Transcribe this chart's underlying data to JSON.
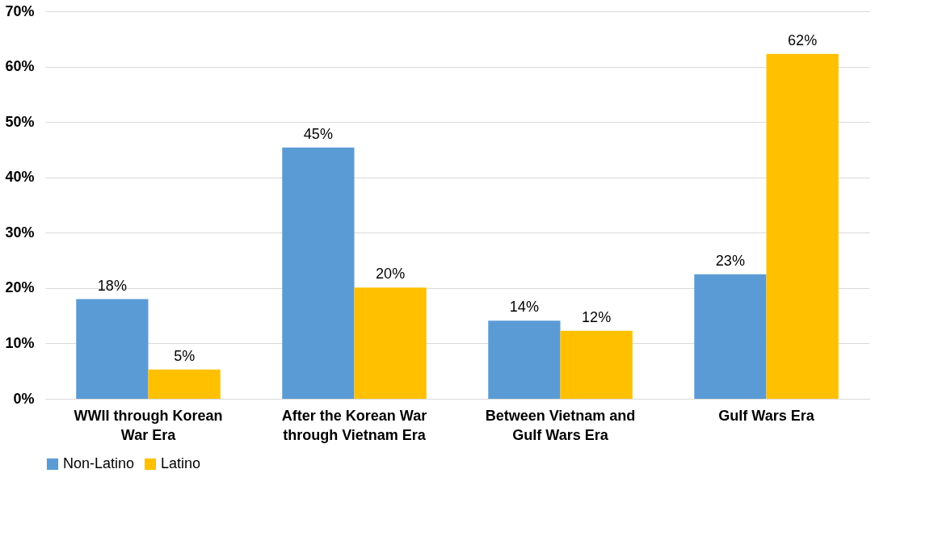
{
  "chart_data": {
    "type": "bar",
    "categories": [
      "WWII through Korean War Era",
      "After the Korean War through Vietnam Era",
      "Between Vietnam and Gulf Wars Era",
      "Gulf Wars Era"
    ],
    "series": [
      {
        "name": "Non-Latino",
        "color": "#5b9bd5",
        "values": [
          18,
          45.4,
          14.1,
          22.5
        ],
        "value_labels": [
          "18%",
          "45%",
          "14%",
          "23%"
        ]
      },
      {
        "name": "Latino",
        "color": "#ffc000",
        "values": [
          5.3,
          20.1,
          12.3,
          62.3
        ],
        "value_labels": [
          "5%",
          "20%",
          "12%",
          "62%"
        ]
      }
    ],
    "ylim": [
      0,
      70
    ],
    "yticks": [
      {
        "value": 0,
        "label": "0%"
      },
      {
        "value": 10,
        "label": "10%"
      },
      {
        "value": 20,
        "label": "20%"
      },
      {
        "value": 30,
        "label": "30%"
      },
      {
        "value": 40,
        "label": "40%"
      },
      {
        "value": 50,
        "label": "50%"
      },
      {
        "value": 60,
        "label": "60%"
      },
      {
        "value": 70,
        "label": "70%"
      }
    ],
    "grid": "y",
    "legend": "bottom"
  }
}
